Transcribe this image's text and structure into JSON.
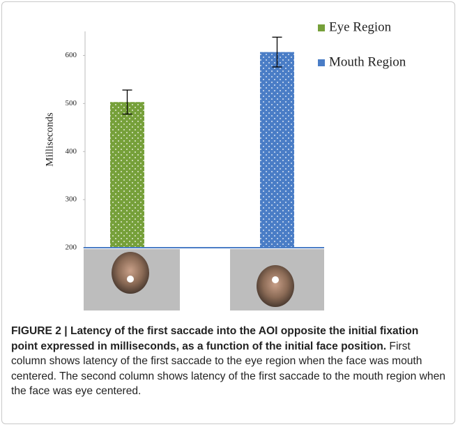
{
  "chart_data": {
    "type": "bar",
    "y_label": "Milliseconds",
    "categories": [
      null,
      null
    ],
    "series": [
      {
        "name": "Eye Region",
        "color": "#76a03a",
        "values": [
          503,
          null
        ],
        "errors": [
          25,
          null
        ]
      },
      {
        "name": "Mouth Region",
        "color": "#4a7dc6",
        "values": [
          null,
          607
        ],
        "errors": [
          null,
          31
        ]
      }
    ],
    "ylim": [
      200,
      650
    ],
    "yticks": [
      200,
      300,
      400,
      500,
      600
    ],
    "grid": false,
    "legend": "upper right"
  },
  "caption": {
    "title": "FIGURE 2 | Latency of the first saccade into the AOI opposite the initial fixation point expressed in milliseconds, as a function of the initial face position.",
    "text": "First column shows latency of the first saccade to the eye region when the face was mouth centered. The second column shows latency of the first saccade to the mouth region when the face was eye centered."
  }
}
